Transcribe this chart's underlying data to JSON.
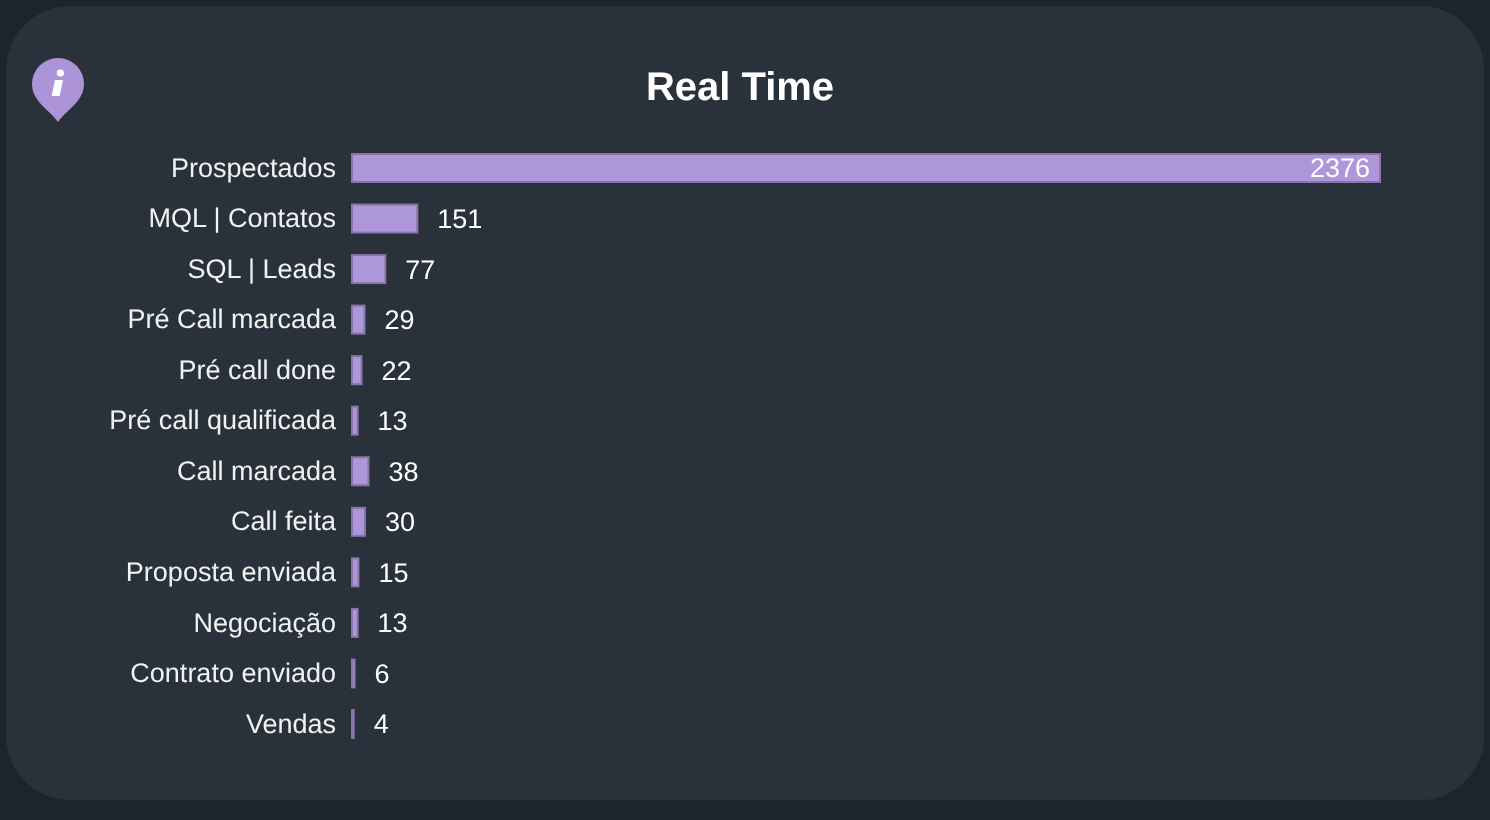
{
  "chart_data": {
    "type": "bar",
    "orientation": "horizontal",
    "title": "Real Time",
    "categories": [
      "Prospectados",
      "MQL | Contatos",
      "SQL | Leads",
      "Pré Call marcada",
      "Pré call done",
      "Pré call qualificada",
      "Call marcada",
      "Call feita",
      "Proposta enviada",
      "Negociação",
      "Contrato enviado",
      "Vendas"
    ],
    "values": [
      2376,
      151,
      77,
      29,
      22,
      13,
      38,
      30,
      15,
      13,
      6,
      4
    ],
    "color": "#ae96da",
    "data_labels": true,
    "tick_labels": "y"
  }
}
